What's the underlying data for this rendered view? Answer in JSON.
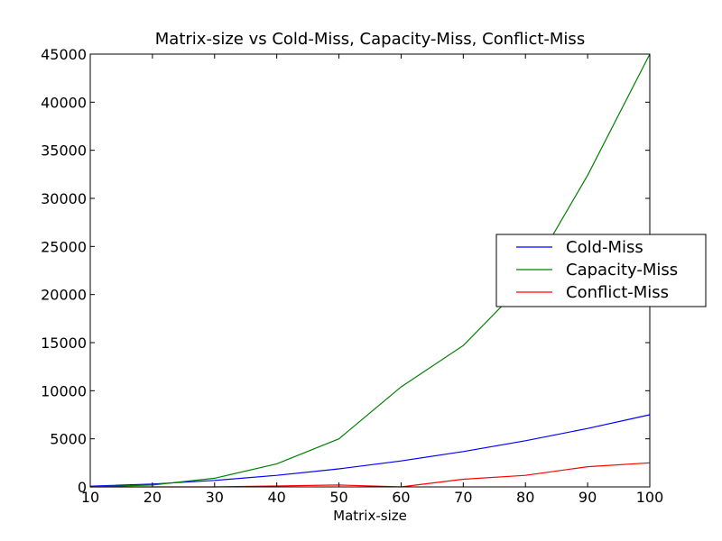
{
  "chart_data": {
    "type": "line",
    "title": "Matrix-size vs Cold-Miss, Capacity-Miss, Conflict-Miss",
    "xlabel": "Matrix-size",
    "ylabel": "",
    "xlim": [
      10,
      100
    ],
    "ylim": [
      0,
      45000
    ],
    "x_ticks": [
      10,
      20,
      30,
      40,
      50,
      60,
      70,
      80,
      90,
      100
    ],
    "y_ticks": [
      0,
      5000,
      10000,
      15000,
      20000,
      25000,
      30000,
      35000,
      40000,
      45000
    ],
    "grid": false,
    "legend_position": "center-right",
    "x": [
      10,
      20,
      30,
      40,
      50,
      60,
      70,
      80,
      90,
      100
    ],
    "series": [
      {
        "name": "Cold-Miss",
        "color": "#0000ff",
        "values": [
          75,
          300,
          675,
          1200,
          1875,
          2700,
          3675,
          4800,
          6075,
          7500
        ]
      },
      {
        "name": "Capacity-Miss",
        "color": "#008000",
        "values": [
          0,
          200,
          900,
          2400,
          5000,
          10400,
          14700,
          21300,
          32400,
          45000
        ]
      },
      {
        "name": "Conflict-Miss",
        "color": "#ff0000",
        "values": [
          0,
          0,
          0,
          100,
          200,
          0,
          800,
          1200,
          2100,
          2500
        ]
      }
    ]
  }
}
